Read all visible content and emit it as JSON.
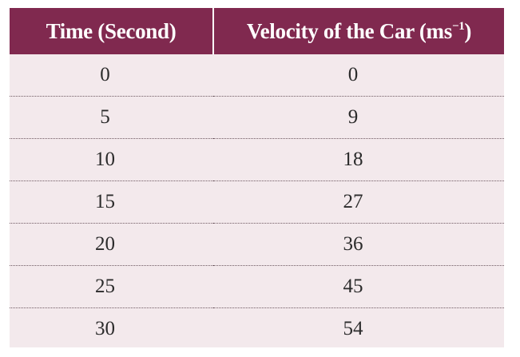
{
  "table": {
    "headers": {
      "time": "Time (Second)",
      "velocity_main": "Velocity of the Car (ms",
      "velocity_sup": "−1",
      "velocity_close": ")"
    },
    "rows": [
      {
        "time": "0",
        "velocity": "0"
      },
      {
        "time": "5",
        "velocity": "9"
      },
      {
        "time": "10",
        "velocity": "18"
      },
      {
        "time": "15",
        "velocity": "27"
      },
      {
        "time": "20",
        "velocity": "36"
      },
      {
        "time": "25",
        "velocity": "45"
      },
      {
        "time": "30",
        "velocity": "54"
      }
    ]
  },
  "colors": {
    "header_bg": "#80294f",
    "body_bg": "#f3e9ec",
    "header_text": "#ffffff",
    "body_text": "#2b2b2b"
  }
}
